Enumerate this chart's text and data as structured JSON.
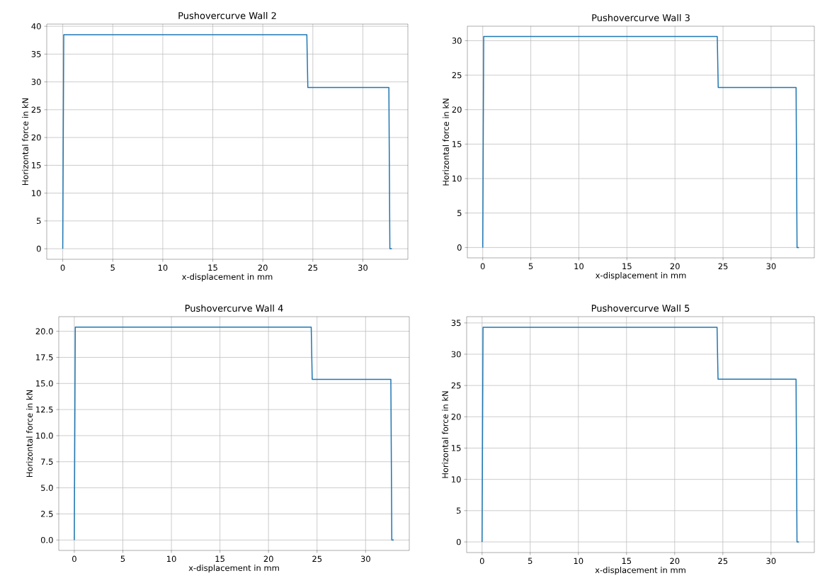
{
  "chart_data": [
    {
      "type": "line",
      "title": "Pushovercurve Wall 2",
      "xlabel": "x-displacement in mm",
      "ylabel": "Horizontal force in kN",
      "color": "#1f77b4",
      "grid": true,
      "x": [
        0,
        0.1,
        24.4,
        24.5,
        32.6,
        32.7,
        32.9
      ],
      "values": [
        0,
        38.5,
        38.5,
        29.0,
        29.0,
        0,
        0
      ],
      "xlim": [
        -1.6,
        34.5
      ],
      "ylim": [
        -1.9,
        40.4
      ],
      "xticks": [
        0,
        5,
        10,
        15,
        20,
        25,
        30
      ],
      "yticks": [
        0,
        5,
        10,
        15,
        20,
        25,
        30,
        35,
        40
      ]
    },
    {
      "type": "line",
      "title": "Pushovercurve Wall 3",
      "xlabel": "x-displacement in mm",
      "ylabel": "Horizontal force in kN",
      "color": "#1f77b4",
      "grid": true,
      "x": [
        0,
        0.1,
        24.4,
        24.5,
        32.6,
        32.7,
        32.9
      ],
      "values": [
        0,
        30.6,
        30.6,
        23.2,
        23.2,
        0,
        0
      ],
      "xlim": [
        -1.6,
        34.5
      ],
      "ylim": [
        -1.5,
        32.1
      ],
      "xticks": [
        0,
        5,
        10,
        15,
        20,
        25,
        30
      ],
      "yticks": [
        0,
        5,
        10,
        15,
        20,
        25,
        30
      ]
    },
    {
      "type": "line",
      "title": "Pushovercurve Wall 4",
      "xlabel": "x-displacement in mm",
      "ylabel": "Horizontal force in kN",
      "color": "#1f77b4",
      "grid": true,
      "x": [
        0,
        0.1,
        24.4,
        24.5,
        32.6,
        32.7,
        32.9
      ],
      "values": [
        0,
        20.4,
        20.4,
        15.4,
        15.4,
        0,
        0
      ],
      "xlim": [
        -1.6,
        34.5
      ],
      "ylim": [
        -1.0,
        21.4
      ],
      "xticks": [
        0,
        5,
        10,
        15,
        20,
        25,
        30
      ],
      "yticks": [
        {
          "value": 0,
          "label": "0.0"
        },
        {
          "value": 2.5,
          "label": "2.5"
        },
        {
          "value": 5,
          "label": "5.0"
        },
        {
          "value": 7.5,
          "label": "7.5"
        },
        {
          "value": 10,
          "label": "10.0"
        },
        {
          "value": 12.5,
          "label": "12.5"
        },
        {
          "value": 15,
          "label": "15.0"
        },
        {
          "value": 17.5,
          "label": "17.5"
        },
        {
          "value": 20,
          "label": "20.0"
        }
      ]
    },
    {
      "type": "line",
      "title": "Pushovercurve Wall 5",
      "xlabel": "x-displacement in mm",
      "ylabel": "Horizontal force in kN",
      "color": "#1f77b4",
      "grid": true,
      "x": [
        0,
        0.1,
        24.4,
        24.5,
        32.6,
        32.7,
        32.9
      ],
      "values": [
        0,
        34.3,
        34.3,
        26.0,
        26.0,
        0,
        0
      ],
      "xlim": [
        -1.6,
        34.5
      ],
      "ylim": [
        -1.7,
        36.0
      ],
      "xticks": [
        0,
        5,
        10,
        15,
        20,
        25,
        30
      ],
      "yticks": [
        0,
        5,
        10,
        15,
        20,
        25,
        30,
        35
      ]
    }
  ]
}
